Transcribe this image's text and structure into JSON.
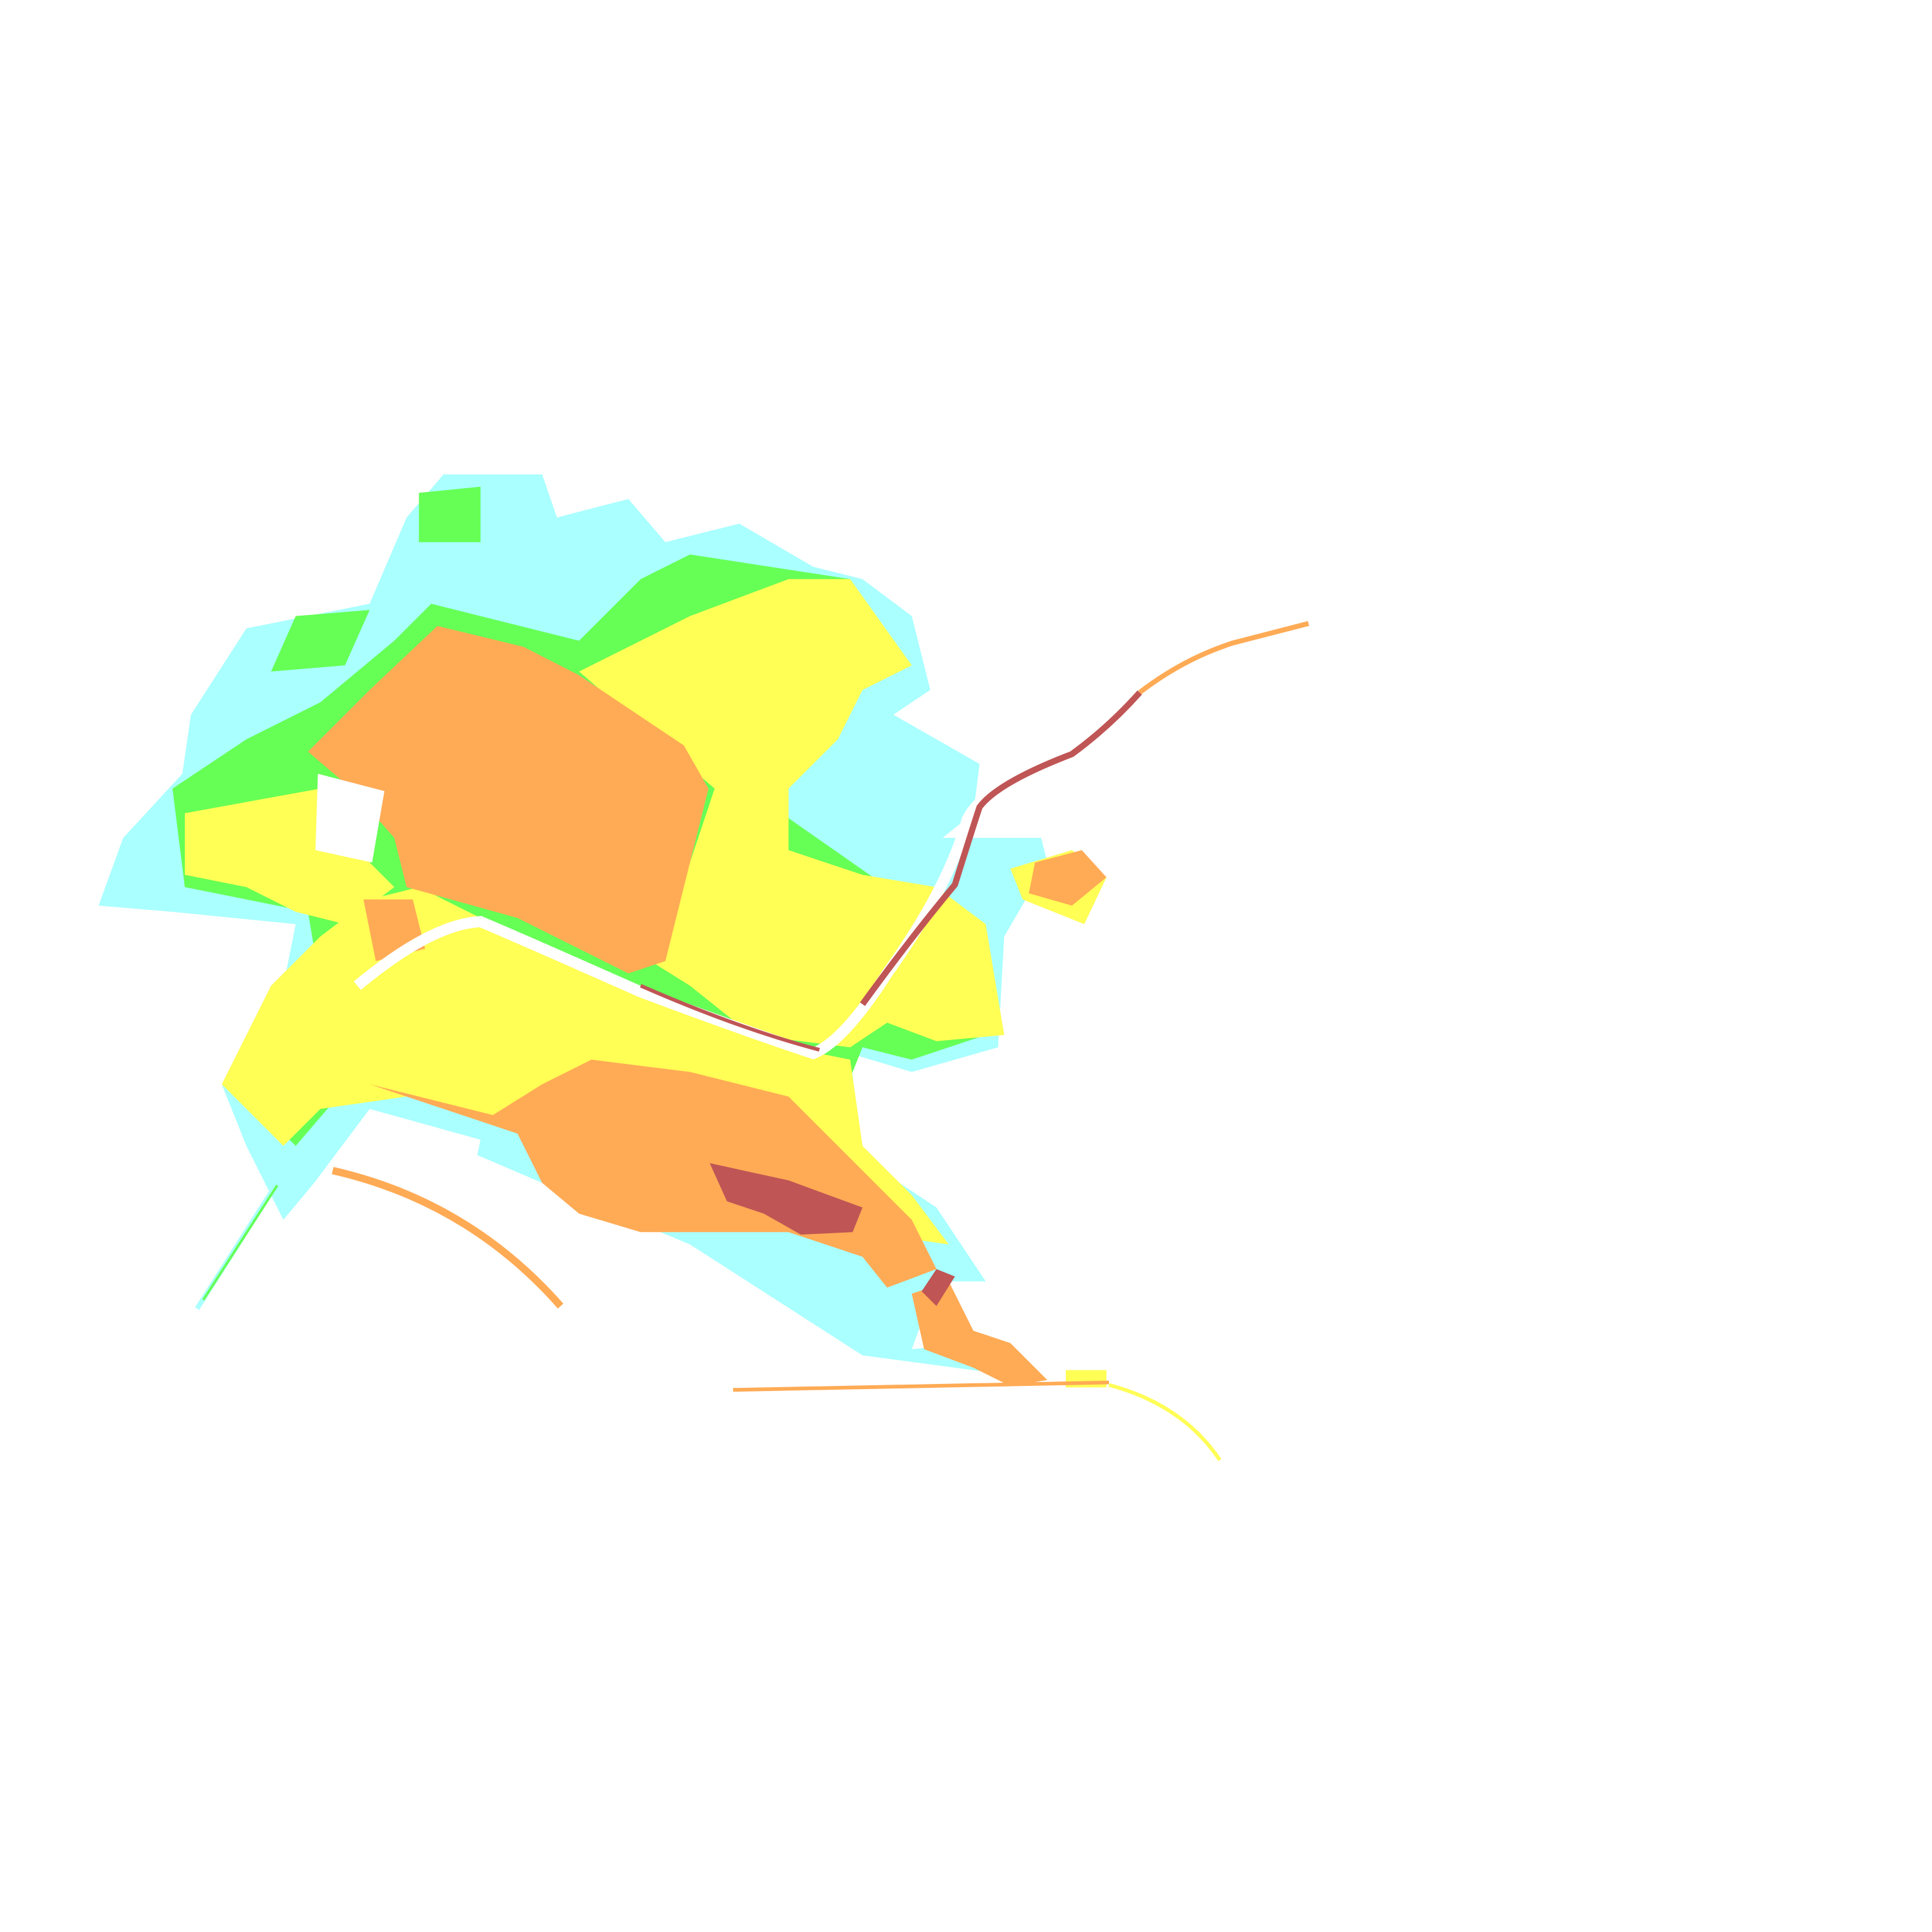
{
  "map": {
    "type": "classified-raster",
    "background": "#ffffff",
    "class_colors": {
      "class_1": "#aaffff",
      "class_2": "#66ff55",
      "class_3": "#ffff55",
      "class_4": "#ffaa55",
      "class_5": "#c05555"
    }
  }
}
